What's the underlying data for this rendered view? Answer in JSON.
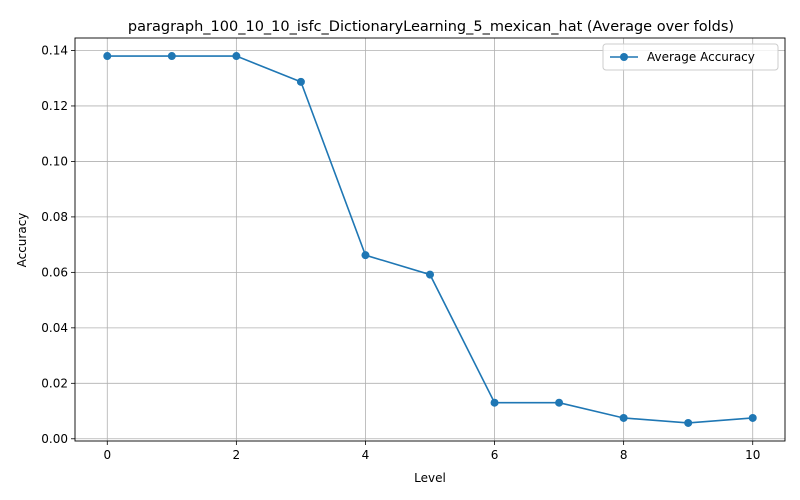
{
  "chart_data": {
    "type": "line",
    "title": "paragraph_100_10_10_isfc_DictionaryLearning_5_mexican_hat (Average over folds)",
    "xlabel": "Level",
    "ylabel": "Accuracy",
    "xlim": [
      -0.5,
      10.5
    ],
    "ylim": [
      -0.0008,
      0.1445
    ],
    "xticks": [
      0,
      2,
      4,
      6,
      8,
      10
    ],
    "xtick_labels": [
      "0",
      "2",
      "4",
      "6",
      "8",
      "10"
    ],
    "yticks": [
      0.0,
      0.02,
      0.04,
      0.06,
      0.08,
      0.1,
      0.12,
      0.14
    ],
    "ytick_labels": [
      "0.00",
      "0.02",
      "0.04",
      "0.06",
      "0.08",
      "0.10",
      "0.12",
      "0.14"
    ],
    "grid": true,
    "legend_position": "top-right",
    "series": [
      {
        "name": "Average Accuracy",
        "color": "#1f77b4",
        "marker": "circle",
        "x": [
          0,
          1,
          2,
          3,
          4,
          5,
          6,
          7,
          8,
          9,
          10
        ],
        "y": [
          0.138,
          0.138,
          0.138,
          0.1287,
          0.0662,
          0.0592,
          0.013,
          0.013,
          0.0075,
          0.0057,
          0.0075
        ]
      }
    ]
  }
}
